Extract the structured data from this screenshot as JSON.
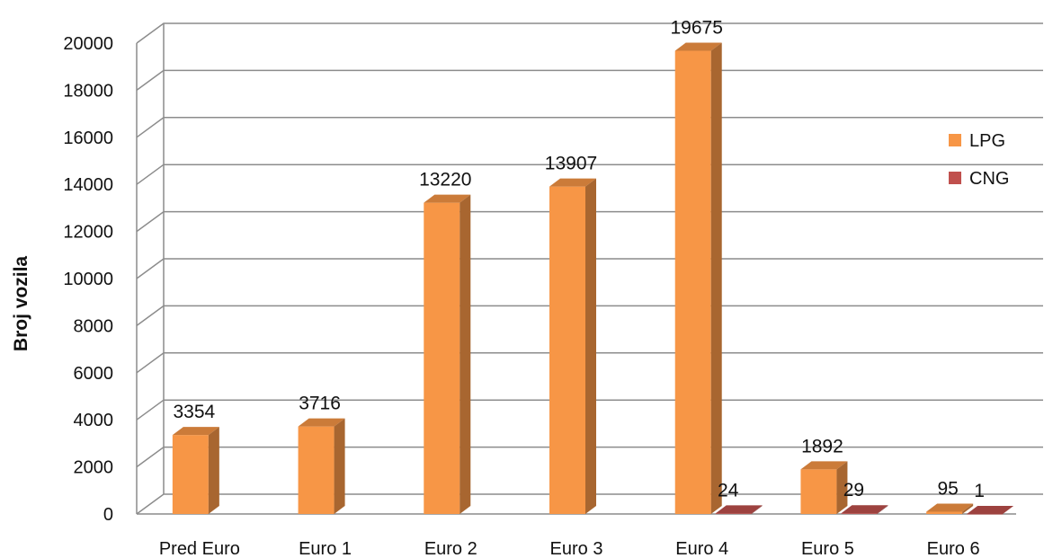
{
  "chart_data": {
    "type": "bar",
    "title": "",
    "xlabel": "",
    "ylabel": "Broj vozila",
    "ylim": [
      0,
      20000
    ],
    "ytick_step": 2000,
    "grid": true,
    "legend_position": "right",
    "categories": [
      "Pred Euro",
      "Euro 1",
      "Euro 2",
      "Euro 3",
      "Euro 4",
      "Euro 5",
      "Euro 6"
    ],
    "series": [
      {
        "name": "LPG",
        "color": "#f79646",
        "values": [
          3354,
          3716,
          13220,
          13907,
          19675,
          1892,
          95
        ],
        "labels": [
          "3354",
          "3716",
          "13220",
          "13907",
          "19675",
          "1892",
          "95"
        ]
      },
      {
        "name": "CNG",
        "color": "#c0504d",
        "values": [
          0,
          0,
          0,
          0,
          24,
          29,
          1
        ],
        "labels": [
          "",
          "",
          "",
          "",
          "24",
          "29",
          "1"
        ]
      }
    ]
  }
}
